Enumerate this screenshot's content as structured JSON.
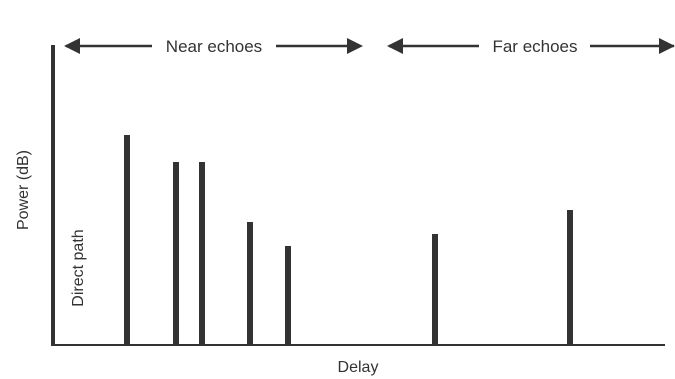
{
  "axes": {
    "xlabel": "Delay",
    "ylabel": "Power (dB)"
  },
  "annotations": {
    "near_echoes": "Near echoes",
    "far_echoes": "Far echoes",
    "direct_path": "Direct path"
  },
  "impulses": [
    {
      "delay": 0,
      "power": 1.0
    },
    {
      "delay": 1,
      "power": 0.7
    },
    {
      "delay": 2,
      "power": 0.61
    },
    {
      "delay": 3,
      "power": 0.61
    },
    {
      "delay": 4,
      "power": 0.41
    },
    {
      "delay": 5,
      "power": 0.33
    },
    {
      "delay": 6,
      "power": 0.37
    },
    {
      "delay": 7,
      "power": 0.45
    }
  ],
  "colors": {
    "ink": "#333333"
  }
}
